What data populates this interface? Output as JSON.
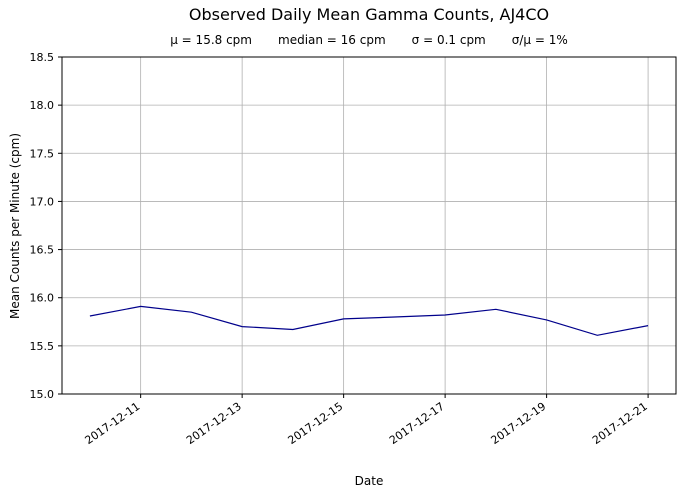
{
  "chart_data": {
    "type": "line",
    "title": "Observed Daily Mean Gamma Counts, AJ4CO",
    "stats": [
      "μ = 15.8 cpm",
      "median = 16 cpm",
      "σ = 0.1 cpm",
      "σ/μ = 1%"
    ],
    "xlabel": "Date",
    "ylabel": "Mean Counts per Minute (cpm)",
    "x": [
      "2017-12-10",
      "2017-12-11",
      "2017-12-12",
      "2017-12-13",
      "2017-12-14",
      "2017-12-15",
      "2017-12-16",
      "2017-12-17",
      "2017-12-18",
      "2017-12-19",
      "2017-12-20",
      "2017-12-21"
    ],
    "values": [
      15.81,
      15.91,
      15.85,
      15.7,
      15.67,
      15.78,
      15.8,
      15.82,
      15.88,
      15.77,
      15.61,
      15.71
    ],
    "x_tick_labels": [
      "2017-12-11",
      "2017-12-13",
      "2017-12-15",
      "2017-12-17",
      "2017-12-19",
      "2017-12-21"
    ],
    "y_ticks": [
      15.0,
      15.5,
      16.0,
      16.5,
      17.0,
      17.5,
      18.0,
      18.5
    ],
    "ylim": [
      15.0,
      18.5
    ],
    "grid": true,
    "legend": "none",
    "line_color": "#00008b",
    "grid_color": "#b0b0b0",
    "axis_color": "#000000",
    "background_color": "#ffffff"
  }
}
